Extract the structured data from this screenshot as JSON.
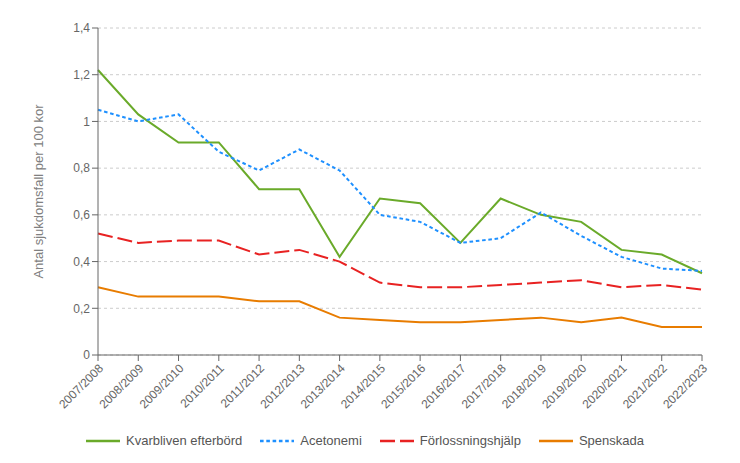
{
  "chart_data": {
    "type": "line",
    "y_label": "Antal sjukdomsfall per 100 kor",
    "categories": [
      "2007/2008",
      "2008/2009",
      "2009/2010",
      "2010/2011",
      "2011/2012",
      "2012/2013",
      "2013/2014",
      "2014/2015",
      "2015/2016",
      "2016/2017",
      "2017/2018",
      "2018/2019",
      "2019/2020",
      "2020/2021",
      "2021/2022",
      "2022/2023"
    ],
    "series": [
      {
        "name": "Kvarbliven efterbörd",
        "color": "#6aaa2a",
        "line_style": "solid",
        "values": [
          1.22,
          1.03,
          0.91,
          0.91,
          0.71,
          0.71,
          0.42,
          0.67,
          0.65,
          0.48,
          0.67,
          0.6,
          0.57,
          0.45,
          0.43,
          0.35
        ]
      },
      {
        "name": "Acetonemi",
        "color": "#1e90ff",
        "line_style": "dotted",
        "values": [
          1.05,
          1.0,
          1.03,
          0.87,
          0.79,
          0.88,
          0.79,
          0.6,
          0.57,
          0.48,
          0.5,
          0.61,
          0.51,
          0.42,
          0.37,
          0.36
        ]
      },
      {
        "name": "Förlossningshjälp",
        "color": "#e82222",
        "line_style": "dashed",
        "values": [
          0.52,
          0.48,
          0.49,
          0.49,
          0.43,
          0.45,
          0.4,
          0.31,
          0.29,
          0.29,
          0.3,
          0.31,
          0.32,
          0.29,
          0.3,
          0.28
        ]
      },
      {
        "name": "Spenskada",
        "color": "#e87c00",
        "line_style": "solid",
        "values": [
          0.29,
          0.25,
          0.25,
          0.25,
          0.23,
          0.23,
          0.16,
          0.15,
          0.14,
          0.14,
          0.15,
          0.16,
          0.14,
          0.16,
          0.12,
          0.12
        ]
      }
    ],
    "ylim": [
      0,
      1.4
    ],
    "yticks": [
      0,
      {
        "value": 0.2,
        "label": "0,2"
      },
      {
        "value": 0.4,
        "label": "0,4"
      },
      {
        "value": 0.6,
        "label": "0,6"
      },
      {
        "value": 0.8,
        "label": "0,8"
      },
      1,
      {
        "value": 1.2,
        "label": "1,2"
      },
      {
        "value": 1.4,
        "label": "1,4"
      }
    ],
    "grid": true,
    "legend": "bottom"
  }
}
